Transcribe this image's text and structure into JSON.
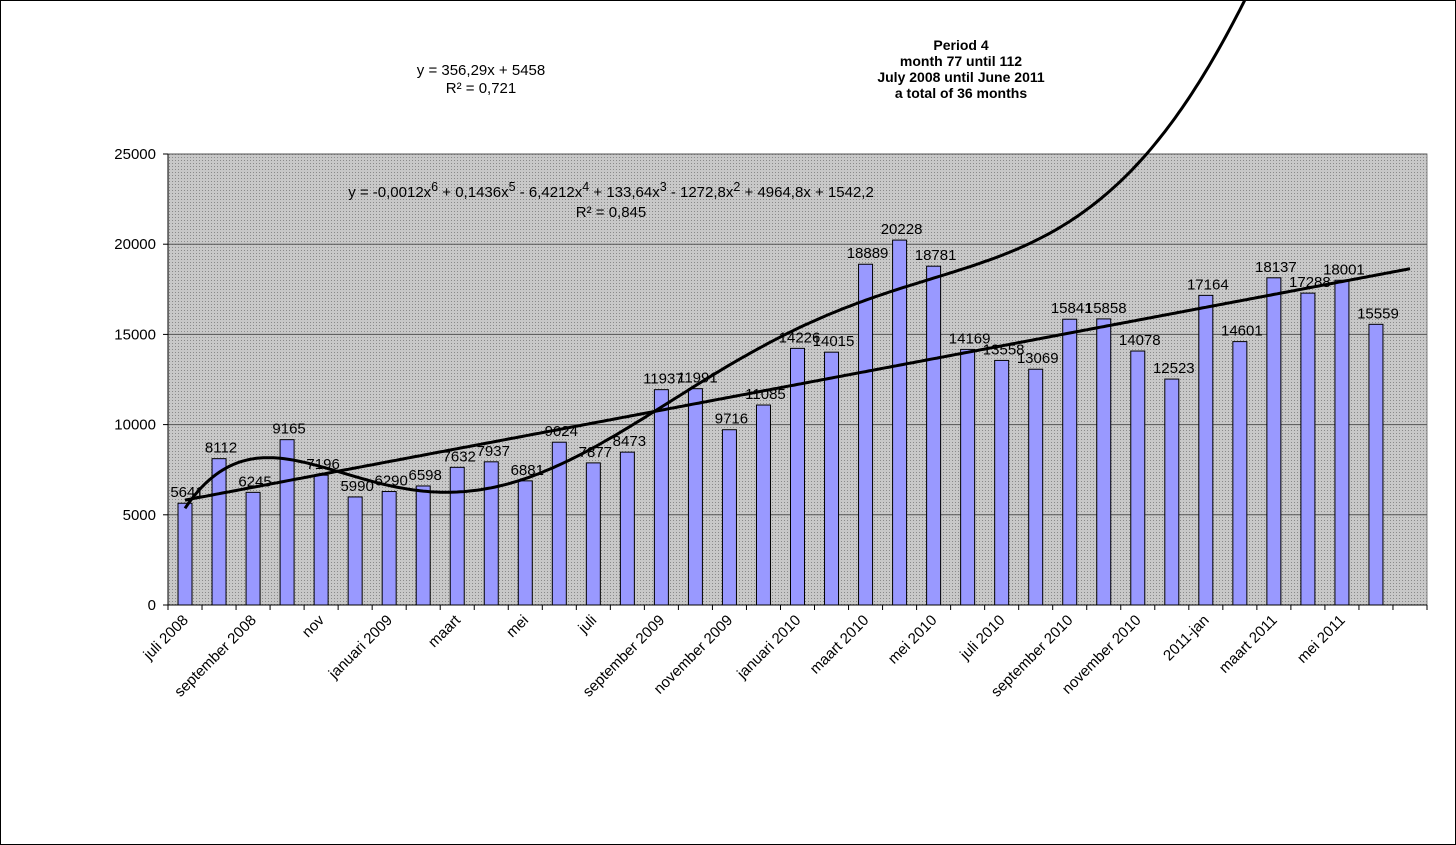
{
  "chart_data": {
    "type": "bar",
    "title_lines": [
      "Period 4",
      "month 77 until 112",
      "July 2008 until June 2011",
      "a total of 36 months"
    ],
    "linear_trend": {
      "equation": "y = 356,29x + 5458",
      "r2": "R² = 0,721",
      "coef": [
        356.29,
        5458
      ]
    },
    "poly_trend": {
      "equation_parts": [
        "y = -0,0012x",
        "6",
        "  + 0,1436x",
        "5",
        "  - 6,4212x",
        "4",
        "  + 133,64x",
        "3",
        "  - 1272,8x",
        "2",
        "  + 4964,8x + 1542,2"
      ],
      "r2": "R² = 0,845",
      "coef": [
        -0.0012,
        0.1436,
        -6.4212,
        133.64,
        -1272.8,
        4964.8,
        1542.2
      ]
    },
    "ylim": [
      0,
      25000
    ],
    "yticks": [
      0,
      5000,
      10000,
      15000,
      20000,
      25000
    ],
    "xtick_labels": [
      "juli 2008",
      "september 2008",
      "nov",
      "januari 2009",
      "maart",
      "mei",
      "juli",
      "september 2009",
      "november 2009",
      "januari 2010",
      "maart 2010",
      "mei 2010",
      "juli 2010",
      "september 2010",
      "november 2010",
      "2011-jan",
      "maart 2011",
      "mei 2011"
    ],
    "values": [
      5641,
      8112,
      6245,
      9165,
      7196,
      5990,
      6290,
      6598,
      7632,
      7937,
      6881,
      9024,
      7877,
      8473,
      11937,
      11991,
      9716,
      11085,
      14226,
      14015,
      18889,
      20228,
      18781,
      14169,
      13558,
      13069,
      15841,
      15858,
      14078,
      12523,
      17164,
      14601,
      18137,
      17288,
      18001,
      15559
    ],
    "colors": {
      "bar": "#9999ff",
      "plot_bg": "#c0c0c0"
    }
  }
}
